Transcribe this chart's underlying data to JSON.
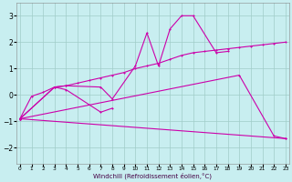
{
  "xlabel": "Windchill (Refroidissement éolien,°C)",
  "background_color": "#c8eef0",
  "grid_color": "#a0ccc8",
  "line_color": "#cc00aa",
  "ylim": [
    -2.6,
    3.5
  ],
  "xlim": [
    -0.3,
    23.3
  ],
  "yticks": [
    -2,
    -1,
    0,
    1,
    2,
    3
  ],
  "xticks": [
    0,
    1,
    2,
    3,
    4,
    5,
    6,
    7,
    8,
    9,
    10,
    11,
    12,
    13,
    14,
    15,
    16,
    17,
    18,
    19,
    20,
    21,
    22,
    23
  ],
  "line1_x": [
    0,
    1,
    2,
    3,
    4,
    5,
    6,
    7,
    8,
    9,
    10,
    11,
    12,
    13,
    14,
    15,
    16,
    17,
    18,
    19,
    20,
    21,
    22,
    23
  ],
  "line1_y": [
    -0.9,
    -0.05,
    0.1,
    0.3,
    0.35,
    0.45,
    0.55,
    0.65,
    0.75,
    0.85,
    1.0,
    1.1,
    1.2,
    1.35,
    1.5,
    1.6,
    1.65,
    1.7,
    1.75,
    1.8,
    1.85,
    1.9,
    1.95,
    2.0
  ],
  "line2_x": [
    0,
    3,
    4,
    7,
    8,
    10,
    11,
    12,
    13,
    14,
    15,
    17,
    18
  ],
  "line2_y": [
    -0.9,
    0.3,
    0.35,
    0.3,
    -0.15,
    1.1,
    2.35,
    1.1,
    2.5,
    3.0,
    3.0,
    1.6,
    1.65
  ],
  "line3_x": [
    0,
    3,
    4,
    7,
    8
  ],
  "line3_y": [
    -0.9,
    0.3,
    0.2,
    -0.65,
    -0.5
  ],
  "line4_x": [
    0,
    23
  ],
  "line4_y": [
    -0.9,
    -1.65
  ],
  "line5_x": [
    0,
    19,
    22,
    23
  ],
  "line5_y": [
    -0.9,
    0.75,
    -1.55,
    -1.65
  ]
}
